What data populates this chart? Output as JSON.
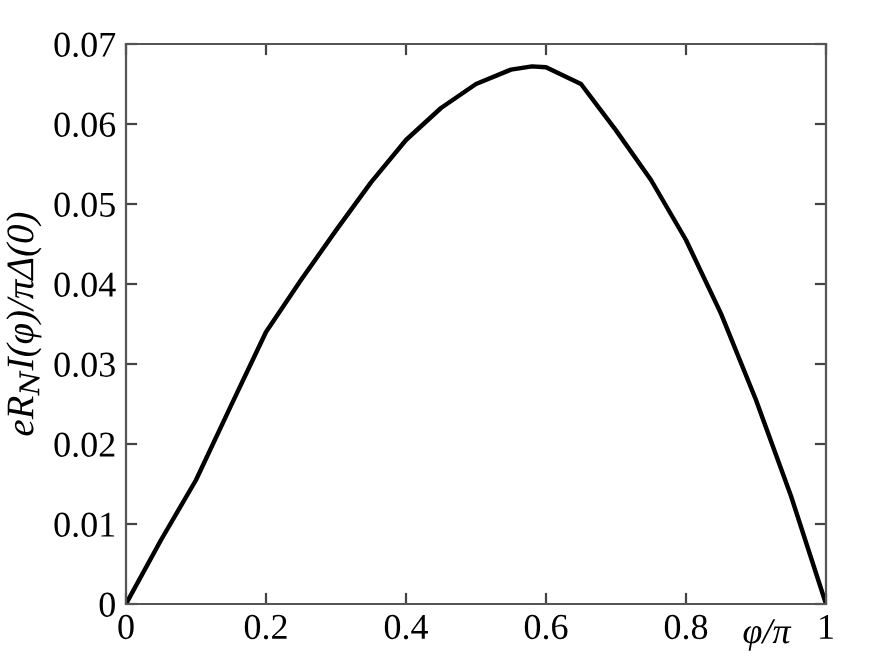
{
  "chart_data": {
    "type": "line",
    "xlabel": "φ/π",
    "ylabel": "eR$_{N}$I(φ)/πΔ(0)",
    "x": [
      0,
      0.05,
      0.1,
      0.15,
      0.2,
      0.25,
      0.3,
      0.35,
      0.4,
      0.45,
      0.5,
      0.55,
      0.58,
      0.6,
      0.65,
      0.7,
      0.75,
      0.8,
      0.85,
      0.9,
      0.95,
      1
    ],
    "series": [
      {
        "color": "#000000",
        "values": [
          0,
          0.008,
          0.0155,
          0.0248,
          0.034,
          0.0405,
          0.0467,
          0.0527,
          0.058,
          0.062,
          0.065,
          0.0668,
          0.0672,
          0.0671,
          0.065,
          0.0592,
          0.053,
          0.0455,
          0.0363,
          0.0255,
          0.0135,
          0
        ]
      }
    ],
    "xlim": [
      0,
      1
    ],
    "ylim": [
      0,
      0.07
    ],
    "xticks": [
      0,
      0.2,
      0.4,
      0.6,
      0.8,
      1
    ],
    "yticks": [
      0,
      0.01,
      0.02,
      0.03,
      0.04,
      0.05,
      0.06,
      0.07
    ],
    "grid": false,
    "legend": false,
    "marker": "none",
    "line_style": "solid"
  }
}
